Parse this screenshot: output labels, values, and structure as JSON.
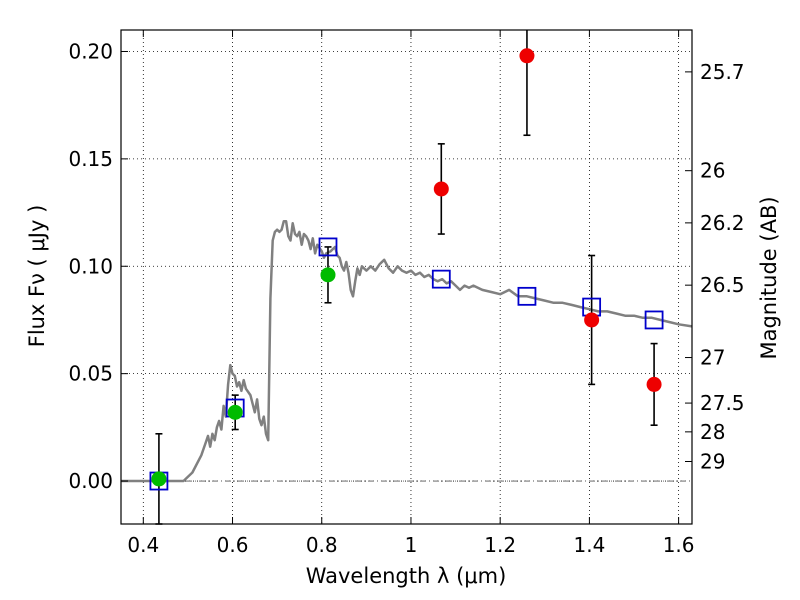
{
  "chart_data": {
    "type": "scatter",
    "xlabel": "Wavelength  λ (μm)",
    "ylabel": "Flux  Fν  ( μJy )",
    "y2label": "Magnitude (AB)",
    "xlim": [
      0.35,
      1.63
    ],
    "ylim": [
      -0.02,
      0.21
    ],
    "grid": true,
    "x_ticks": [
      0.4,
      0.6,
      0.8,
      1.0,
      1.2,
      1.4,
      1.6
    ],
    "x_tick_labels": [
      "0.4",
      "0.6",
      "0.8",
      "1",
      "1.2",
      "1.4",
      "1.6"
    ],
    "y_ticks": [
      0.0,
      0.05,
      0.1,
      0.15,
      0.2
    ],
    "y_tick_labels": [
      "0.00",
      "0.05",
      "0.10",
      "0.15",
      "0.20"
    ],
    "y2_ticks": [
      {
        "label": "25.7",
        "flux": 0.1905
      },
      {
        "label": "26",
        "flux": 0.1445
      },
      {
        "label": "26.2",
        "flux": 0.1202
      },
      {
        "label": "26.5",
        "flux": 0.0912
      },
      {
        "label": "27",
        "flux": 0.0575
      },
      {
        "label": "27.5",
        "flux": 0.0363
      },
      {
        "label": "28",
        "flux": 0.0229
      },
      {
        "label": "29",
        "flux": 0.0091
      }
    ],
    "model_spectrum": {
      "color": "#808080",
      "points": [
        [
          0.35,
          0.0
        ],
        [
          0.49,
          0.0
        ],
        [
          0.51,
          0.004
        ],
        [
          0.53,
          0.012
        ],
        [
          0.54,
          0.018
        ],
        [
          0.545,
          0.021
        ],
        [
          0.55,
          0.016
        ],
        [
          0.555,
          0.022
        ],
        [
          0.56,
          0.019
        ],
        [
          0.565,
          0.025
        ],
        [
          0.57,
          0.028
        ],
        [
          0.575,
          0.024
        ],
        [
          0.58,
          0.035
        ],
        [
          0.585,
          0.03
        ],
        [
          0.59,
          0.045
        ],
        [
          0.595,
          0.054
        ],
        [
          0.6,
          0.05
        ],
        [
          0.605,
          0.049
        ],
        [
          0.61,
          0.044
        ],
        [
          0.615,
          0.046
        ],
        [
          0.62,
          0.042
        ],
        [
          0.625,
          0.047
        ],
        [
          0.63,
          0.043
        ],
        [
          0.64,
          0.04
        ],
        [
          0.645,
          0.036
        ],
        [
          0.65,
          0.032
        ],
        [
          0.655,
          0.038
        ],
        [
          0.66,
          0.029
        ],
        [
          0.665,
          0.026
        ],
        [
          0.67,
          0.03
        ],
        [
          0.675,
          0.022
        ],
        [
          0.68,
          0.019
        ],
        [
          0.685,
          0.085
        ],
        [
          0.69,
          0.112
        ],
        [
          0.695,
          0.116
        ],
        [
          0.7,
          0.117
        ],
        [
          0.705,
          0.116
        ],
        [
          0.71,
          0.117
        ],
        [
          0.715,
          0.121
        ],
        [
          0.72,
          0.121
        ],
        [
          0.725,
          0.114
        ],
        [
          0.73,
          0.112
        ],
        [
          0.735,
          0.12
        ],
        [
          0.74,
          0.115
        ],
        [
          0.745,
          0.114
        ],
        [
          0.75,
          0.116
        ],
        [
          0.755,
          0.11
        ],
        [
          0.76,
          0.115
        ],
        [
          0.765,
          0.114
        ],
        [
          0.77,
          0.112
        ],
        [
          0.775,
          0.108
        ],
        [
          0.78,
          0.113
        ],
        [
          0.785,
          0.106
        ],
        [
          0.79,
          0.11
        ],
        [
          0.8,
          0.107
        ],
        [
          0.805,
          0.104
        ],
        [
          0.81,
          0.106
        ],
        [
          0.82,
          0.107
        ],
        [
          0.83,
          0.109
        ],
        [
          0.835,
          0.105
        ],
        [
          0.84,
          0.104
        ],
        [
          0.845,
          0.1
        ],
        [
          0.85,
          0.098
        ],
        [
          0.855,
          0.102
        ],
        [
          0.86,
          0.097
        ],
        [
          0.865,
          0.089
        ],
        [
          0.87,
          0.086
        ],
        [
          0.875,
          0.093
        ],
        [
          0.88,
          0.099
        ],
        [
          0.885,
          0.096
        ],
        [
          0.89,
          0.1
        ],
        [
          0.9,
          0.098
        ],
        [
          0.91,
          0.1
        ],
        [
          0.92,
          0.098
        ],
        [
          0.93,
          0.101
        ],
        [
          0.94,
          0.103
        ],
        [
          0.95,
          0.099
        ],
        [
          0.96,
          0.097
        ],
        [
          0.97,
          0.1
        ],
        [
          0.98,
          0.098
        ],
        [
          0.99,
          0.097
        ],
        [
          1.0,
          0.098
        ],
        [
          1.01,
          0.096
        ],
        [
          1.02,
          0.097
        ],
        [
          1.03,
          0.095
        ],
        [
          1.04,
          0.096
        ],
        [
          1.05,
          0.094
        ],
        [
          1.06,
          0.093
        ],
        [
          1.07,
          0.094
        ],
        [
          1.08,
          0.092
        ],
        [
          1.09,
          0.093
        ],
        [
          1.1,
          0.091
        ],
        [
          1.11,
          0.089
        ],
        [
          1.12,
          0.091
        ],
        [
          1.13,
          0.09
        ],
        [
          1.14,
          0.091
        ],
        [
          1.16,
          0.089
        ],
        [
          1.18,
          0.088
        ],
        [
          1.2,
          0.087
        ],
        [
          1.22,
          0.089
        ],
        [
          1.24,
          0.086
        ],
        [
          1.26,
          0.086
        ],
        [
          1.28,
          0.085
        ],
        [
          1.3,
          0.084
        ],
        [
          1.32,
          0.083
        ],
        [
          1.34,
          0.083
        ],
        [
          1.36,
          0.082
        ],
        [
          1.38,
          0.081
        ],
        [
          1.4,
          0.08
        ],
        [
          1.42,
          0.079
        ],
        [
          1.44,
          0.079
        ],
        [
          1.46,
          0.078
        ],
        [
          1.48,
          0.077
        ],
        [
          1.5,
          0.077
        ],
        [
          1.52,
          0.076
        ],
        [
          1.54,
          0.076
        ],
        [
          1.56,
          0.075
        ],
        [
          1.58,
          0.074
        ],
        [
          1.6,
          0.073
        ],
        [
          1.63,
          0.072
        ]
      ]
    },
    "synthetic_photometry": {
      "color": "#0000cc",
      "marker": "open-square",
      "points": [
        [
          0.435,
          0.0
        ],
        [
          0.606,
          0.034
        ],
        [
          0.814,
          0.109
        ],
        [
          1.068,
          0.094
        ],
        [
          1.26,
          0.086
        ],
        [
          1.405,
          0.081
        ],
        [
          1.545,
          0.075
        ]
      ]
    },
    "observed_optical": {
      "color": "#00bb00",
      "points": [
        {
          "x": 0.435,
          "y": 0.001,
          "err": 0.021
        },
        {
          "x": 0.606,
          "y": 0.032,
          "err": 0.008
        },
        {
          "x": 0.814,
          "y": 0.096,
          "err": 0.013
        }
      ]
    },
    "observed_nir": {
      "color": "#ee0000",
      "points": [
        {
          "x": 1.068,
          "y": 0.136,
          "err": 0.021
        },
        {
          "x": 1.26,
          "y": 0.198,
          "err": 0.037
        },
        {
          "x": 1.405,
          "y": 0.075,
          "err": 0.03
        },
        {
          "x": 1.545,
          "y": 0.045,
          "err": 0.019
        }
      ]
    }
  }
}
